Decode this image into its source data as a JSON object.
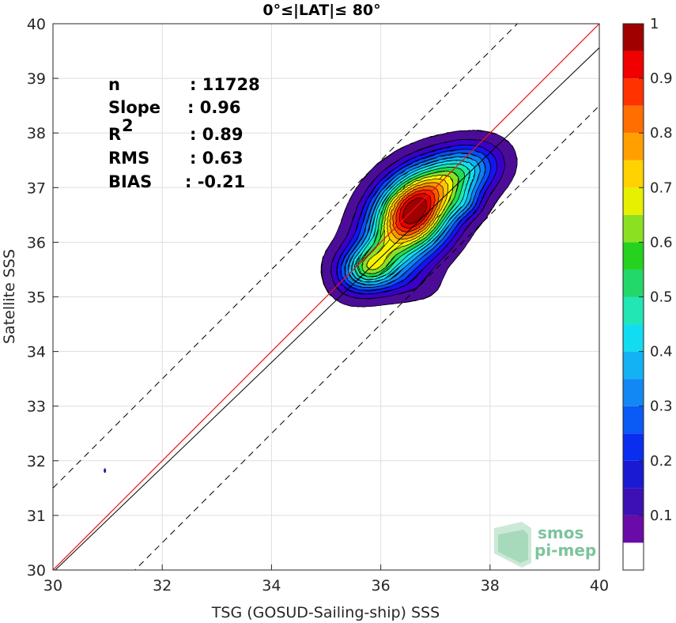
{
  "chart_data": {
    "type": "contour-density",
    "title": "0°≤|LAT|≤ 80°",
    "xlabel": "TSG (GOSUD-Sailing-ship) SSS",
    "ylabel": "Satellite SSS",
    "xlim": [
      30,
      40
    ],
    "ylim": [
      30,
      40
    ],
    "xticks": [
      "30",
      "32",
      "34",
      "36",
      "38",
      "40"
    ],
    "yticks": [
      "30",
      "31",
      "32",
      "33",
      "34",
      "35",
      "36",
      "37",
      "38",
      "39",
      "40"
    ],
    "grid": true,
    "stats": [
      {
        "label": "n",
        "value": ": 11728"
      },
      {
        "label": "Slope",
        "value": ": 0.96"
      },
      {
        "label": "R",
        "sup": "2",
        "value": ": 0.89"
      },
      {
        "label": "RMS",
        "value": ": 0.63"
      },
      {
        "label": "BIAS",
        "value": ": -0.21"
      }
    ],
    "lines": {
      "identity": {
        "slope": 1.0,
        "intercept": 0.0,
        "color": "#e8141c"
      },
      "regression": {
        "slope": 0.96,
        "intercept": 1.16,
        "color": "#000000"
      },
      "bounds_offset": 1.5
    },
    "density_peaks": [
      {
        "x": 36.62,
        "y": 36.45,
        "value": 1.0
      },
      {
        "x": 35.78,
        "y": 35.55,
        "value": 0.62
      },
      {
        "x": 37.5,
        "y": 37.3,
        "value": 0.5
      },
      {
        "x": 36.55,
        "y": 36.75,
        "value": 0.42
      }
    ],
    "outlier_point": {
      "x": 30.95,
      "y": 31.82
    },
    "colorbar": {
      "range": [
        0,
        1
      ],
      "levels": 15,
      "ticks": [
        "1",
        "0.9",
        "0.8",
        "0.7",
        "0.6",
        "0.5",
        "0.4",
        "0.3",
        "0.2",
        "0.1"
      ],
      "colors": [
        "#ffffff",
        "#4b0c98",
        "#3a00c8",
        "#1414f0",
        "#0a4ef5",
        "#0d82f5",
        "#0fb4f5",
        "#0fe0f0",
        "#20e8b0",
        "#20dc50",
        "#8ce024",
        "#f4f400",
        "#ffc800",
        "#ff9600",
        "#ff5a00",
        "#ff1e00",
        "#e60000",
        "#a00000"
      ]
    }
  },
  "logo": {
    "line1": "smos",
    "line2": "pi-mep"
  }
}
